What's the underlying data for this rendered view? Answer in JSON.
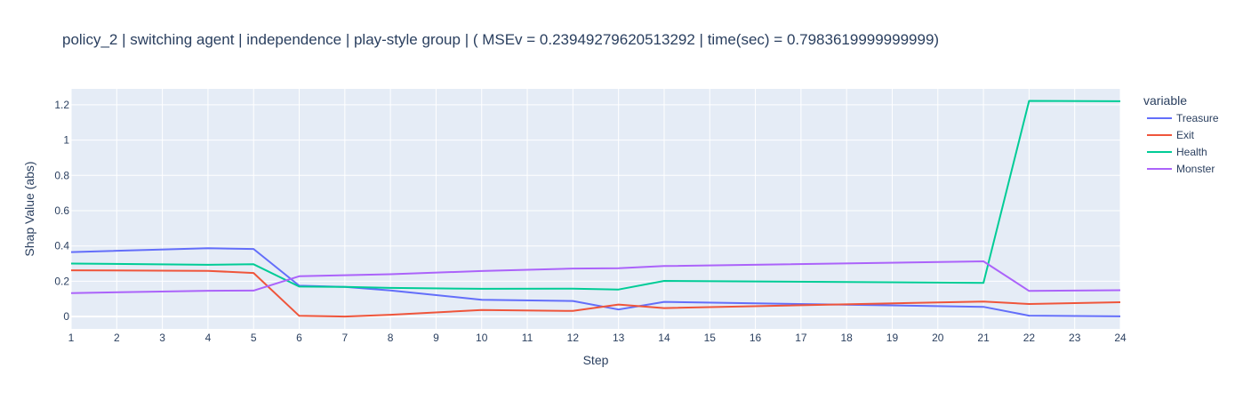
{
  "chart_data": {
    "type": "line",
    "title": "policy_2 | switching agent | independence | play-style group |  ( MSEv = 0.23949279620513292 | time(sec) = 0.7983619999999999)",
    "xlabel": "Step",
    "ylabel": "Shap Value (abs)",
    "legend_title": "variable",
    "legend_position": "right",
    "grid": true,
    "xlim": [
      1,
      24
    ],
    "ylim": [
      -0.07,
      1.29
    ],
    "x_ticks": [
      1,
      2,
      3,
      4,
      5,
      6,
      7,
      8,
      9,
      10,
      11,
      12,
      13,
      14,
      15,
      16,
      17,
      18,
      19,
      20,
      21,
      22,
      23,
      24
    ],
    "y_ticks": [
      0,
      0.2,
      0.4,
      0.6,
      0.8,
      1,
      1.2
    ],
    "y_tick_labels": [
      "0",
      "0.2",
      "0.4",
      "0.6",
      "0.8",
      "1",
      "1.2"
    ],
    "x": [
      1,
      4,
      5,
      6,
      7,
      8,
      10,
      12,
      13,
      14,
      21,
      22,
      24
    ],
    "series": [
      {
        "name": "Treasure",
        "color": "#636efa",
        "values": [
          0.365,
          0.387,
          0.383,
          0.175,
          0.168,
          0.148,
          0.095,
          0.088,
          0.04,
          0.083,
          0.055,
          0.005,
          0.001
        ]
      },
      {
        "name": "Exit",
        "color": "#ef553b",
        "values": [
          0.262,
          0.259,
          0.247,
          0.004,
          0.0,
          0.01,
          0.037,
          0.032,
          0.068,
          0.048,
          0.085,
          0.071,
          0.081
        ]
      },
      {
        "name": "Health",
        "color": "#00cc96",
        "values": [
          0.3,
          0.293,
          0.296,
          0.17,
          0.168,
          0.162,
          0.157,
          0.158,
          0.153,
          0.202,
          0.191,
          1.222,
          1.22
        ]
      },
      {
        "name": "Monster",
        "color": "#ab63fa",
        "values": [
          0.133,
          0.146,
          0.147,
          0.228,
          0.234,
          0.24,
          0.258,
          0.272,
          0.274,
          0.286,
          0.313,
          0.145,
          0.149
        ]
      }
    ],
    "colors": {
      "plot_bg": "#e5ecf6",
      "grid": "#ffffff",
      "text": "#2a3f5f"
    }
  }
}
